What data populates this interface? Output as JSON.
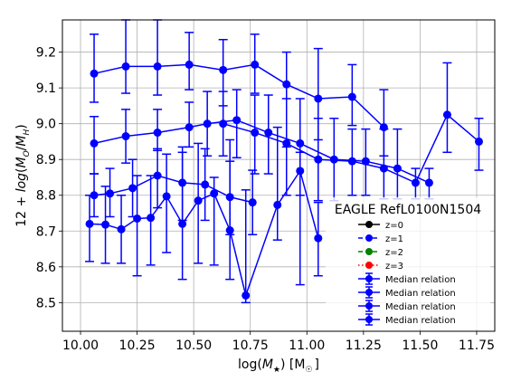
{
  "chart_data": {
    "type": "line",
    "title": "",
    "xlabel": "log(M$_\\star$) [M$_\\odot$]",
    "xlabel_parts": {
      "base": "log(",
      "sym": "M",
      "sub": "★",
      "mid": ") [M",
      "sub2": "☉",
      "end": "]"
    },
    "ylabel_parts": {
      "pre": "12 + ",
      "log": "log",
      "open": "(",
      "mo": "M",
      "o": "O",
      "slash": "/",
      "mh": "M",
      "h": "H",
      "close": ")"
    },
    "xlim": [
      9.92,
      11.83
    ],
    "ylim": [
      8.42,
      9.29
    ],
    "x_ticks": [
      "10.00",
      "10.25",
      "10.50",
      "10.75",
      "11.00",
      "11.25",
      "11.50",
      "11.75"
    ],
    "y_ticks": [
      "8.5",
      "8.6",
      "8.7",
      "8.8",
      "8.9",
      "9.0",
      "9.1",
      "9.2"
    ],
    "grid": true,
    "legend_position": "lower-right",
    "legend_title": "EAGLE RefL0100N1504",
    "legend_entries": [
      {
        "label": "z=0",
        "color": "#000000",
        "style": "solid-line-marker"
      },
      {
        "label": "z=1",
        "color": "#0000ff",
        "style": "dashed-line-marker"
      },
      {
        "label": "z=2",
        "color": "#008000",
        "style": "dashed-line-marker"
      },
      {
        "label": "z=3",
        "color": "#ff0000",
        "style": "dotted-line-marker"
      },
      {
        "label": "Median relation",
        "color": "#0000ff",
        "style": "errorbar"
      },
      {
        "label": "Median relation",
        "color": "#0000ff",
        "style": "errorbar"
      },
      {
        "label": "Median relation",
        "color": "#0000ff",
        "style": "errorbar"
      },
      {
        "label": "Median relation",
        "color": "#0000ff",
        "style": "errorbar"
      }
    ],
    "series": [
      {
        "color": "#0000ff",
        "x": [
          10.06,
          10.2,
          10.34,
          10.48,
          10.63,
          10.77,
          10.91,
          11.05,
          11.2,
          11.34
        ],
        "y": [
          9.14,
          9.16,
          9.16,
          9.165,
          9.15,
          9.165,
          9.11,
          9.07,
          9.075,
          8.99
        ],
        "err_lo": [
          9.06,
          9.085,
          9.08,
          9.095,
          9.05,
          9.085,
          8.935,
          8.955,
          8.995,
          8.91
        ],
        "err_hi": [
          9.25,
          9.29,
          9.29,
          9.255,
          9.235,
          9.25,
          9.2,
          9.21,
          9.165,
          9.095
        ]
      },
      {
        "color": "#0000ff",
        "x": [
          10.06,
          10.2,
          10.34,
          10.48,
          10.56,
          10.69,
          10.83,
          10.97,
          11.12,
          11.26,
          11.4,
          11.54
        ],
        "y": [
          8.945,
          8.965,
          8.975,
          8.99,
          9.0,
          9.01,
          8.975,
          8.945,
          8.9,
          8.895,
          8.875,
          8.835
        ],
        "err_lo": [
          8.86,
          8.89,
          8.925,
          8.935,
          8.91,
          8.905,
          8.86,
          8.8,
          8.785,
          8.8,
          8.79,
          8.79
        ],
        "err_hi": [
          9.02,
          9.04,
          9.04,
          9.06,
          9.09,
          9.095,
          9.08,
          9.07,
          9.015,
          8.985,
          8.985,
          8.875
        ]
      },
      {
        "color": "#0000ff",
        "x": [
          10.63,
          10.77,
          10.91,
          11.05,
          11.2,
          11.34,
          11.48,
          11.62,
          11.76
        ],
        "y": [
          9.0,
          8.975,
          8.945,
          8.9,
          8.895,
          8.875,
          8.835,
          9.025,
          8.95
        ],
        "err_lo": [
          8.91,
          8.86,
          8.8,
          8.785,
          8.8,
          8.79,
          8.79,
          8.92,
          8.87
        ],
        "err_hi": [
          9.09,
          9.08,
          9.07,
          9.015,
          8.985,
          8.985,
          8.875,
          9.17,
          9.015
        ]
      },
      {
        "color": "#0000ff",
        "x": [
          10.06,
          10.13,
          10.23,
          10.34,
          10.45,
          10.55,
          10.66,
          10.76
        ],
        "y": [
          8.8,
          8.805,
          8.82,
          8.855,
          8.835,
          8.83,
          8.795,
          8.78
        ],
        "err_lo": [
          8.74,
          8.74,
          8.74,
          8.765,
          8.73,
          8.73,
          8.69,
          8.69
        ],
        "err_hi": [
          8.86,
          8.875,
          8.9,
          8.93,
          8.935,
          8.93,
          8.895,
          8.87
        ]
      },
      {
        "color": "#0000ff",
        "x": [
          10.04,
          10.11,
          10.18,
          10.25,
          10.31,
          10.38,
          10.45,
          10.52,
          10.59,
          10.66,
          10.73,
          10.87,
          10.97,
          11.05
        ],
        "y": [
          8.72,
          8.718,
          8.705,
          8.735,
          8.737,
          8.797,
          8.72,
          8.785,
          8.805,
          8.702,
          8.52,
          8.773,
          8.868,
          8.68
        ],
        "err_lo": [
          8.615,
          8.61,
          8.61,
          8.575,
          8.605,
          8.64,
          8.565,
          8.61,
          8.605,
          8.565,
          8.5,
          8.675,
          8.55,
          8.575
        ],
        "err_hi": [
          8.8,
          8.825,
          8.8,
          8.855,
          8.855,
          8.915,
          8.92,
          8.945,
          8.85,
          8.955,
          8.815,
          8.99,
          8.92,
          8.78
        ]
      }
    ]
  }
}
